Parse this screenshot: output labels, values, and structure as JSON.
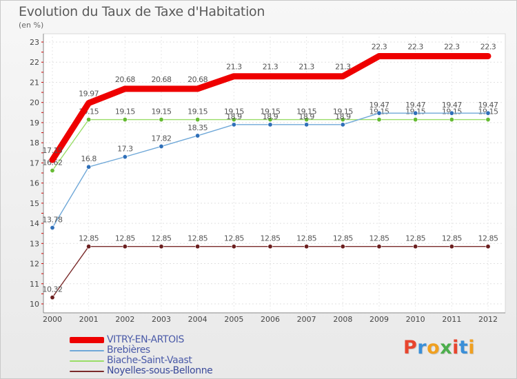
{
  "header": {
    "title": "Evolution du Taux de Taxe d'Habitation",
    "subtitle": "(en %)"
  },
  "logo": {
    "text": "Proxiti",
    "colors": [
      "#e8452e",
      "#3a8fd8",
      "#f0a020",
      "#4cae4c",
      "#e8452e",
      "#3a8fd8",
      "#f0a020"
    ]
  },
  "chart_data": {
    "type": "line",
    "title": "Evolution du Taux de Taxe d'Habitation",
    "ylabel": "(en %)",
    "xlabel": "",
    "ylim": [
      10,
      23
    ],
    "yticks": [
      "10",
      "11",
      "12",
      "13",
      "14",
      "15",
      "16",
      "17",
      "18",
      "19",
      "20",
      "21",
      "22",
      "23"
    ],
    "x": [
      "2000",
      "2001",
      "2002",
      "2003",
      "2004",
      "2005",
      "2006",
      "2007",
      "2008",
      "2009",
      "2010",
      "2011",
      "2012"
    ],
    "grid": true,
    "legend": "bottom-left",
    "series": [
      {
        "name": "VITRY-EN-ARTOIS",
        "color": "#ee0000",
        "values": [
          17.15,
          19.97,
          20.68,
          20.68,
          20.68,
          21.3,
          21.3,
          21.3,
          21.3,
          22.3,
          22.3,
          22.3,
          22.3
        ],
        "labels": [
          "17.15",
          "19.97",
          "20.68",
          "20.68",
          "20.68",
          "21.3",
          "21.3",
          "21.3",
          "21.3",
          "22.3",
          "22.3",
          "22.3",
          "22.3"
        ]
      },
      {
        "name": "Brebières",
        "color": "#6fa8d8",
        "values": [
          13.78,
          16.8,
          17.3,
          17.82,
          18.35,
          18.9,
          18.9,
          18.9,
          18.9,
          19.47,
          19.47,
          19.47,
          19.47
        ],
        "labels": [
          "13.78",
          "16.8",
          "17.3",
          "17.82",
          "18.35",
          "18.9",
          "18.9",
          "18.9",
          "18.9",
          "19.47",
          "19.47",
          "19.47",
          "19.47"
        ]
      },
      {
        "name": "Biache-Saint-Vaast",
        "color": "#99dd66",
        "values": [
          16.62,
          19.15,
          19.15,
          19.15,
          19.15,
          19.15,
          19.15,
          19.15,
          19.15,
          19.15,
          19.15,
          19.15,
          19.15
        ],
        "labels": [
          "16.62",
          "19.15",
          "19.15",
          "19.15",
          "19.15",
          "19.15",
          "19.15",
          "19.15",
          "19.15",
          "19.15",
          "19.15",
          "19.15",
          "19.15"
        ]
      },
      {
        "name": "Noyelles-sous-Bellonne",
        "color": "#7a2a2a",
        "values": [
          10.32,
          12.85,
          12.85,
          12.85,
          12.85,
          12.85,
          12.85,
          12.85,
          12.85,
          12.85,
          12.85,
          12.85,
          12.85
        ],
        "labels": [
          "10.32",
          "12.85",
          "12.85",
          "12.85",
          "12.85",
          "12.85",
          "12.85",
          "12.85",
          "12.85",
          "12.85",
          "12.85",
          "12.85",
          "12.85"
        ]
      }
    ]
  }
}
